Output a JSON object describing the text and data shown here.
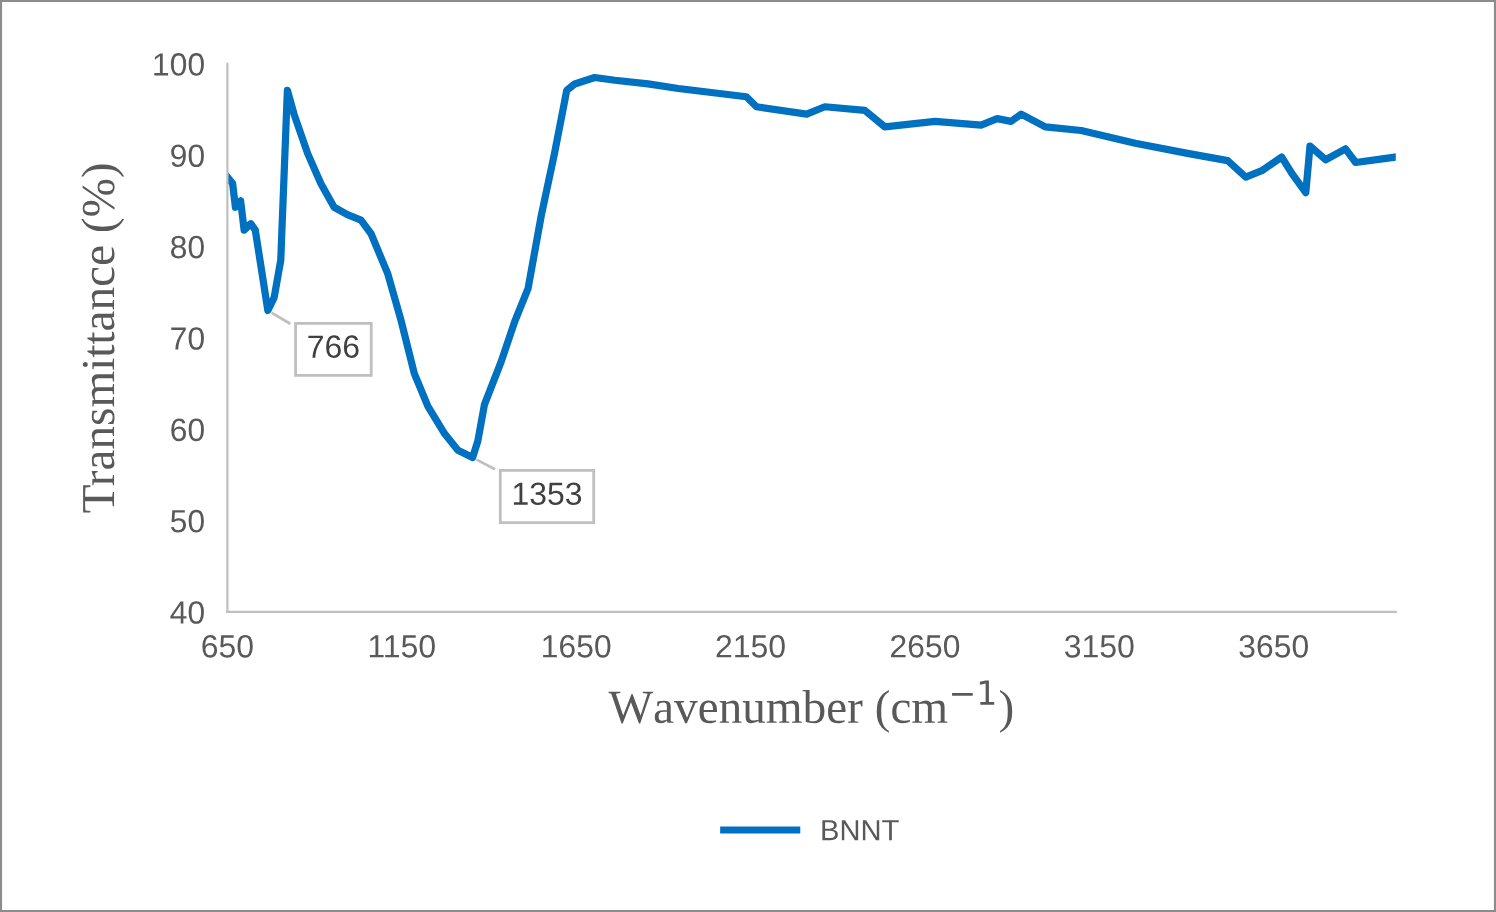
{
  "chart_data": {
    "type": "line",
    "xlabel": "Wavenumber (cm$^{−1}$)",
    "ylabel": "Transmittance (%)",
    "x": [
      650,
      665,
      673,
      688,
      698,
      717,
      730,
      766,
      784,
      803,
      822,
      841,
      880,
      918,
      956,
      994,
      1033,
      1062,
      1110,
      1148,
      1186,
      1225,
      1273,
      1311,
      1353,
      1368,
      1387,
      1435,
      1474,
      1512,
      1550,
      1588,
      1623,
      1646,
      1703,
      1761,
      1856,
      1943,
      2138,
      2167,
      2311,
      2363,
      2478,
      2535,
      2679,
      2811,
      2857,
      2897,
      2926,
      2995,
      3098,
      3253,
      3403,
      3518,
      3570,
      3616,
      3673,
      3702,
      3742,
      3754,
      3799,
      3856,
      3885,
      4000
    ],
    "series": [
      {
        "name": "BNNT",
        "color": "#0070c0",
        "values": [
          87.6,
          86.9,
          84.3,
          85,
          81.8,
          82.5,
          81.8,
          73,
          74.4,
          78.5,
          97.1,
          94.5,
          90.2,
          86.9,
          84.3,
          83.5,
          82.9,
          81.4,
          77,
          71.9,
          66.1,
          62.5,
          59.5,
          57.7,
          56.9,
          58.7,
          62.7,
          67.4,
          71.8,
          75.4,
          83.4,
          90.2,
          97.1,
          97.8,
          98.5,
          98.2,
          97.8,
          97.3,
          96.4,
          95.3,
          94.5,
          95.3,
          94.9,
          93.1,
          93.7,
          93.3,
          94,
          93.7,
          94.5,
          93.1,
          92.7,
          91.3,
          90.2,
          89.4,
          87.6,
          88.3,
          89.8,
          88,
          85.9,
          91,
          89.5,
          90.7,
          89.2,
          89.8
        ]
      }
    ],
    "annotations": [
      {
        "text": "766",
        "x": 766,
        "y": 73
      },
      {
        "text": "1353",
        "x": 1353,
        "y": 56.9
      }
    ],
    "xlim": [
      650,
      4000
    ],
    "xticks": [
      650,
      1150,
      1650,
      2150,
      2650,
      3150,
      3650
    ],
    "ylim": [
      40,
      100
    ],
    "yticks": [
      40,
      50,
      60,
      70,
      80,
      90,
      100
    ],
    "grid": false,
    "legend": "bottom",
    "marker": "none",
    "line_style": "solid"
  }
}
